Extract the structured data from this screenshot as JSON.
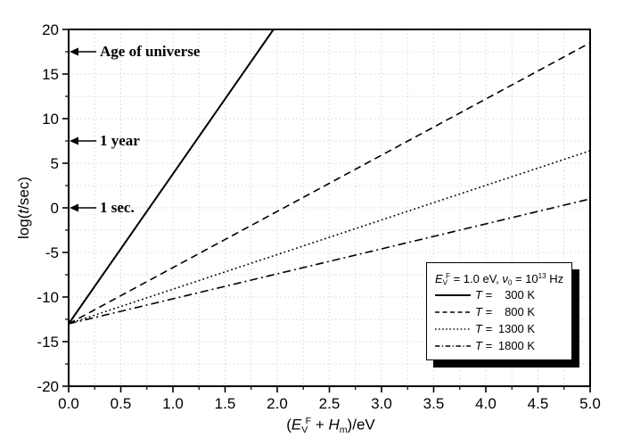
{
  "chart_data": {
    "type": "line",
    "title": "",
    "xlabel": "(E_V^F + H_m)/eV",
    "ylabel": "log(t/sec)",
    "xlabel_parts": [
      {
        "t": "(",
        "s": "n"
      },
      {
        "t": "E",
        "s": "i"
      },
      {
        "t": "V",
        "s": "sub"
      },
      {
        "t": "F",
        "s": "sup"
      },
      {
        "t": " + ",
        "s": "n"
      },
      {
        "t": "H",
        "s": "i"
      },
      {
        "t": "m",
        "s": "sub"
      },
      {
        "t": ")/eV",
        "s": "n"
      }
    ],
    "ylabel_parts": [
      {
        "t": "log(",
        "s": "n"
      },
      {
        "t": "t",
        "s": "i"
      },
      {
        "t": "/sec)",
        "s": "n"
      }
    ],
    "xlim": [
      0,
      5
    ],
    "ylim": [
      -20,
      20
    ],
    "x_major_step": 0.5,
    "x_minor_step": 0.25,
    "y_major_step": 5,
    "y_minor_step": 2.5,
    "x_tick_labels": [
      "0.0",
      "0.5",
      "1.0",
      "1.5",
      "2.0",
      "2.5",
      "3.0",
      "3.5",
      "4.0",
      "4.5",
      "5.0"
    ],
    "y_tick_labels": [
      "20",
      "15",
      "10",
      "5",
      "0",
      "-5",
      "-10",
      "-15",
      "-20"
    ],
    "grid": {
      "on": true,
      "color": "#cccccc",
      "dash": "1.2 3.2",
      "x_step": 0.25,
      "y_step": 2.5
    },
    "axis_color": "#000000",
    "line_color": "#000000",
    "series": [
      {
        "name": "T = 300 K",
        "temperature": "300",
        "line_style": "solid",
        "dash": "",
        "legend_dash": "",
        "width": 2,
        "intercept": -13,
        "slope_per_eV": 16.8,
        "points": [
          [
            0,
            -13
          ],
          [
            1.964,
            20
          ]
        ]
      },
      {
        "name": "T = 800 K",
        "temperature": "800",
        "line_style": "dashed",
        "dash": "8 5",
        "legend_dash": "5 3.5",
        "width": 1.6,
        "intercept": -13,
        "slope_per_eV": 6.3,
        "points": [
          [
            0,
            -13
          ],
          [
            5,
            18.5
          ]
        ]
      },
      {
        "name": "T = 1300 K",
        "temperature": "1300",
        "line_style": "dotted",
        "dash": "1.8 3",
        "legend_dash": "1.5 2.6",
        "width": 1.6,
        "intercept": -13,
        "slope_per_eV": 3.88,
        "points": [
          [
            0,
            -13
          ],
          [
            5,
            6.4
          ]
        ]
      },
      {
        "name": "T = 1800 K",
        "temperature": "1800",
        "line_style": "dash-dot",
        "dash": "9 4 2 4",
        "legend_dash": "5.5 2.5 1.2 2.5",
        "width": 1.6,
        "intercept": -13,
        "slope_per_eV": 2.8,
        "points": [
          [
            0,
            -13
          ],
          [
            5,
            1.0
          ]
        ]
      }
    ],
    "annotations": [
      {
        "text": "Age of universe",
        "y": 17.5
      },
      {
        "text": "1 year",
        "y": 7.5
      },
      {
        "text": "1 sec.",
        "y": 0
      }
    ],
    "legend": {
      "title": "E_V^F = 1.0 eV, ν_0 = 10^13 Hz",
      "title_parts": [
        {
          "t": "E",
          "s": "i"
        },
        {
          "t": "V",
          "s": "sub"
        },
        {
          "t": "F",
          "s": "sup"
        },
        {
          "t": " = 1.0 eV, ",
          "s": "n"
        },
        {
          "t": "ν",
          "s": "i"
        },
        {
          "t": "0",
          "s": "sub"
        },
        {
          "t": " = 10",
          "s": "n"
        },
        {
          "t": "13",
          "s": "sup"
        },
        {
          "t": " Hz",
          "s": "n"
        }
      ],
      "symbol": "T",
      "equals": " = ",
      "unit": " K"
    }
  }
}
